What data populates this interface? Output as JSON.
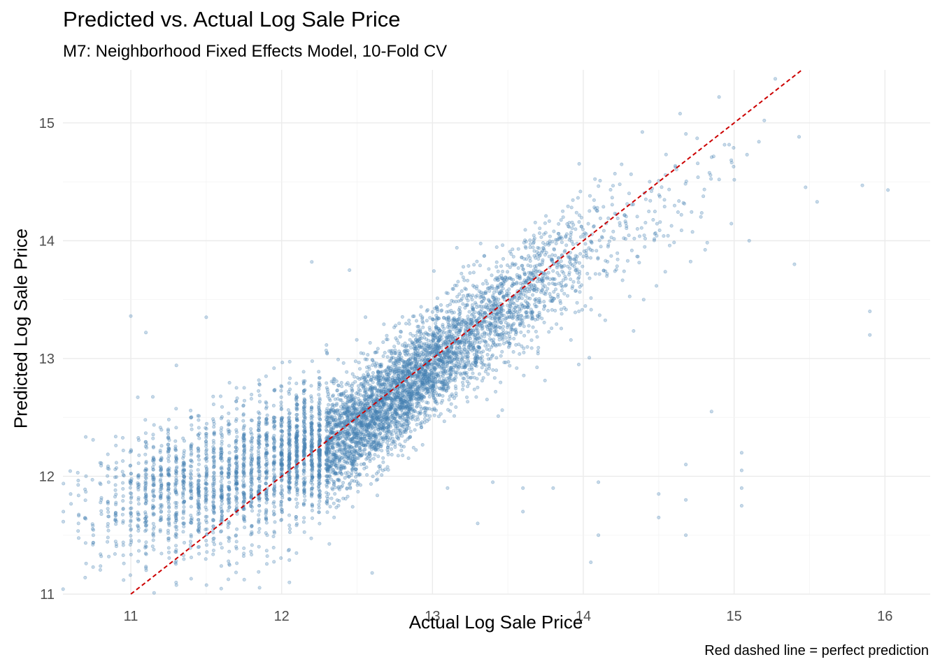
{
  "chart_data": {
    "type": "scatter",
    "title": "Predicted vs. Actual Log Sale Price",
    "subtitle": "M7: Neighborhood Fixed Effects Model, 10-Fold CV",
    "xlabel": "Actual Log Sale Price",
    "ylabel": "Predicted Log Sale Price",
    "caption": "Red dashed line = perfect prediction",
    "xlim": [
      10.55,
      16.3
    ],
    "ylim": [
      11.0,
      15.45
    ],
    "xticks": [
      11,
      12,
      13,
      14,
      15,
      16
    ],
    "yticks": [
      11,
      12,
      13,
      14,
      15
    ],
    "grid": true,
    "point_color": "#4682B4",
    "reference_line": {
      "slope": 1,
      "intercept": 0,
      "color": "#CC0000",
      "style": "dashed"
    },
    "clusters": [
      {
        "x_center": 11.2,
        "x_spread": 0.32,
        "y_base": 11.85,
        "y_spread": 0.28,
        "count": 700
      },
      {
        "x_center": 11.8,
        "x_spread": 0.3,
        "y_base": 12.0,
        "y_spread": 0.32,
        "count": 900
      },
      {
        "x_center": 12.45,
        "x_spread": 0.3,
        "y_base": 12.35,
        "y_spread": 0.22,
        "count": 2000
      },
      {
        "x_center": 12.9,
        "x_spread": 0.3,
        "y_base": 12.85,
        "y_spread": 0.22,
        "count": 1800
      },
      {
        "x_center": 13.5,
        "x_spread": 0.3,
        "y_base": 13.45,
        "y_spread": 0.22,
        "count": 900
      },
      {
        "x_center": 14.2,
        "x_spread": 0.45,
        "y_base": 14.0,
        "y_spread": 0.35,
        "count": 250
      }
    ],
    "outliers": [
      [
        15.05,
        12.2
      ],
      [
        15.05,
        12.05
      ],
      [
        15.05,
        11.9
      ],
      [
        15.05,
        11.75
      ],
      [
        14.68,
        12.1
      ],
      [
        14.68,
        11.8
      ],
      [
        14.68,
        11.5
      ],
      [
        14.5,
        11.85
      ],
      [
        14.5,
        11.65
      ],
      [
        14.1,
        11.95
      ],
      [
        14.1,
        11.5
      ],
      [
        13.8,
        11.9
      ],
      [
        13.6,
        11.9
      ],
      [
        13.6,
        11.7
      ],
      [
        13.4,
        11.95
      ],
      [
        13.3,
        11.6
      ],
      [
        13.1,
        11.9
      ],
      [
        15.9,
        13.4
      ],
      [
        15.9,
        13.2
      ],
      [
        16.02,
        14.43
      ],
      [
        15.85,
        14.47
      ],
      [
        15.55,
        14.33
      ],
      [
        15.4,
        13.8
      ],
      [
        15.1,
        14.0
      ],
      [
        14.9,
        15.22
      ],
      [
        12.6,
        11.18
      ],
      [
        11.0,
        13.36
      ],
      [
        11.1,
        13.22
      ],
      [
        11.5,
        13.35
      ],
      [
        12.2,
        13.82
      ],
      [
        12.45,
        13.75
      ],
      [
        14.05,
        11.27
      ],
      [
        14.4,
        13.5
      ],
      [
        14.85,
        12.55
      ]
    ]
  }
}
